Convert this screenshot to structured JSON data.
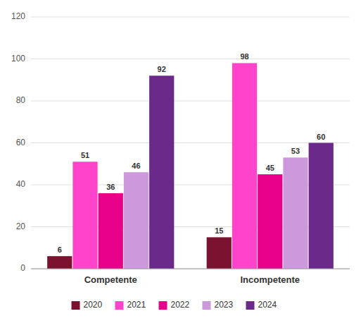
{
  "chart_data": {
    "type": "bar",
    "categories": [
      "Competente",
      "Incompetente"
    ],
    "series": [
      {
        "name": "2020",
        "color": "#7B1230",
        "values": [
          6,
          15
        ]
      },
      {
        "name": "2021",
        "color": "#FF44CC",
        "values": [
          51,
          98
        ]
      },
      {
        "name": "2022",
        "color": "#E8008A",
        "values": [
          36,
          45
        ]
      },
      {
        "name": "2023",
        "color": "#CC99DD",
        "values": [
          46,
          53
        ]
      },
      {
        "name": "2024",
        "color": "#6B2A8A",
        "values": [
          92,
          60
        ]
      }
    ],
    "ylim": [
      0,
      120
    ],
    "yticks": [
      0,
      20,
      40,
      60,
      80,
      100,
      120
    ],
    "grid": true,
    "data_labels": true,
    "legend": "bottom"
  }
}
